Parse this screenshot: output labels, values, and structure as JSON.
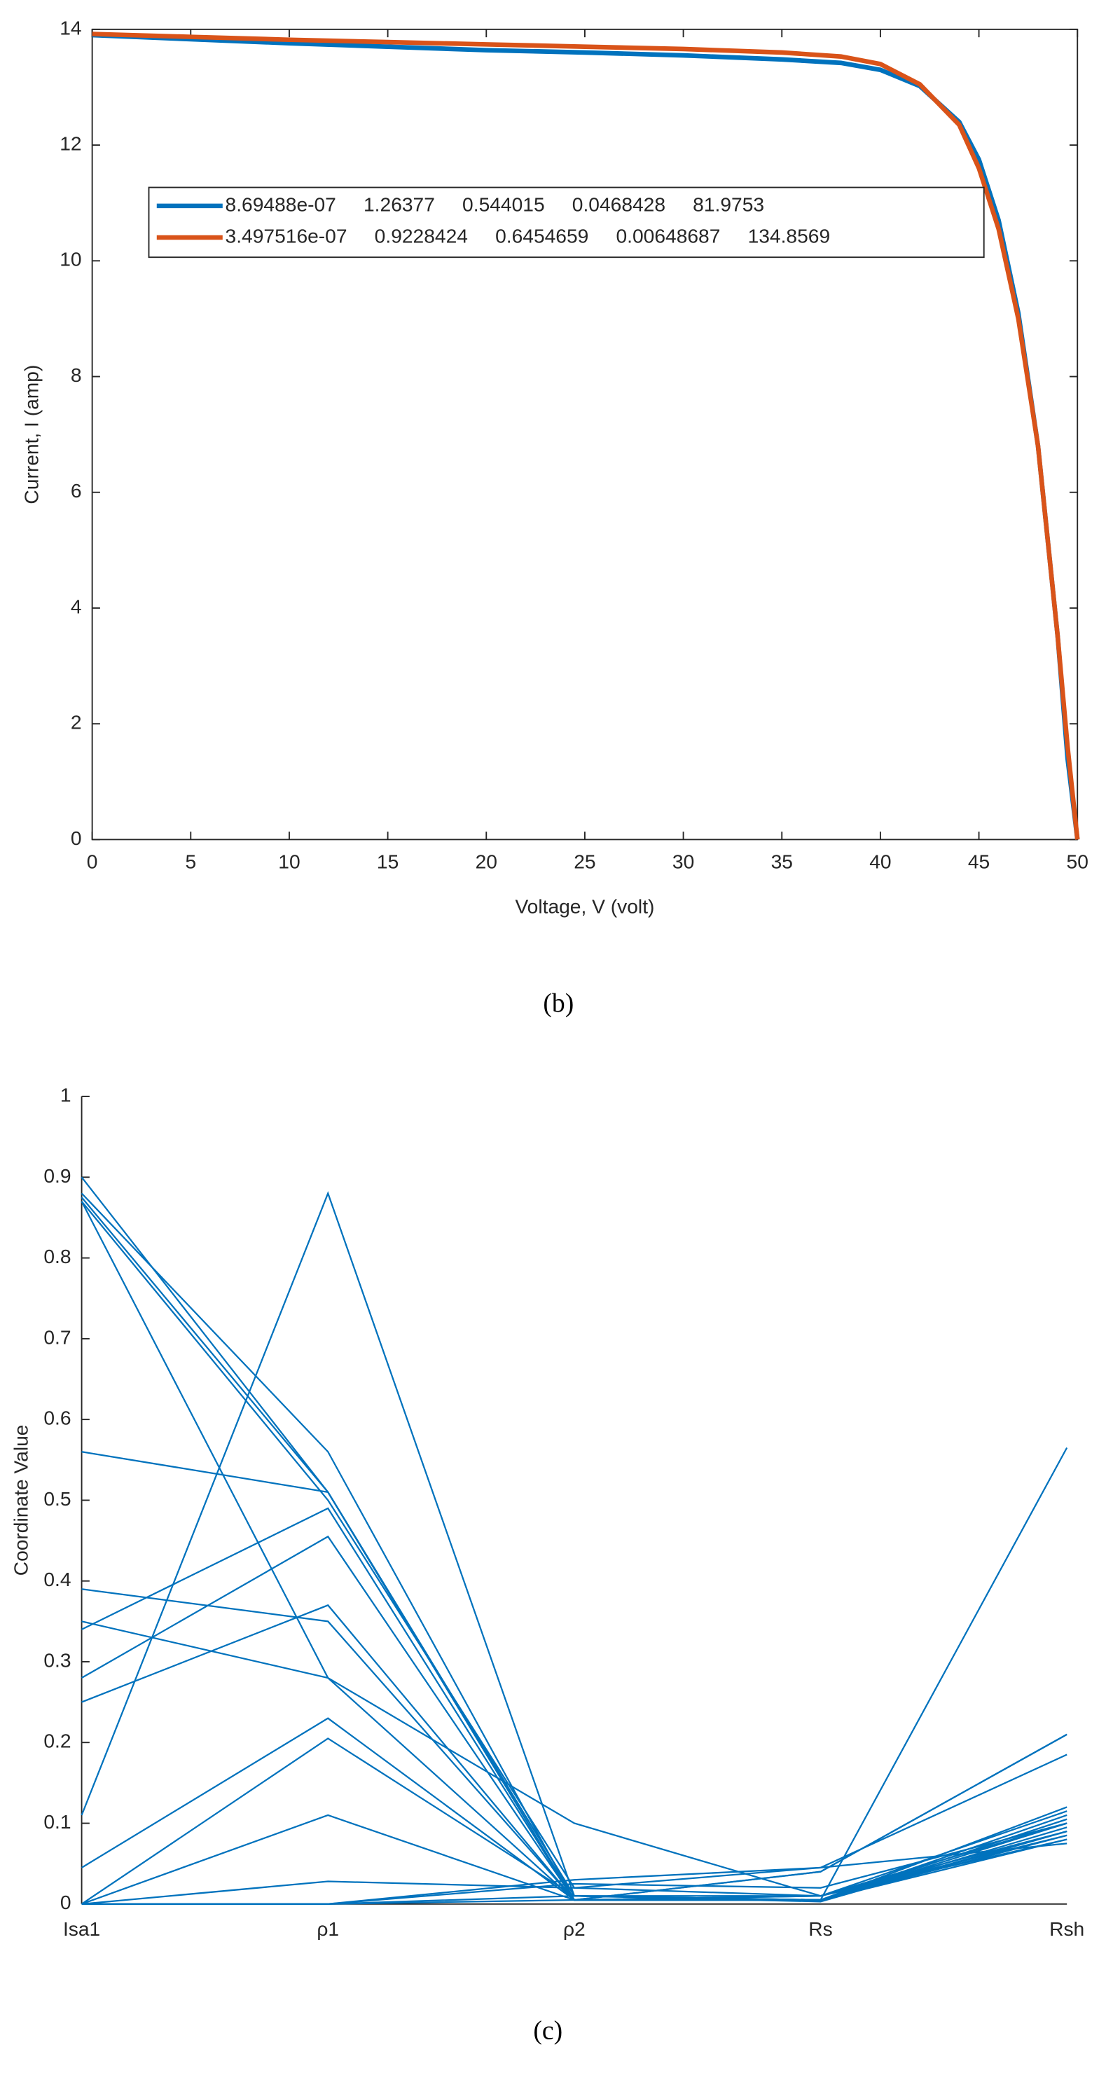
{
  "chart_data": [
    {
      "type": "line",
      "caption": "(b)",
      "xlabel": "Voltage, V (volt)",
      "ylabel": "Current, I (amp)",
      "x": [
        0,
        5,
        10,
        15,
        20,
        25,
        30,
        35,
        38,
        40,
        42,
        44,
        45,
        46,
        47,
        48,
        49,
        49.5,
        50
      ],
      "series": [
        {
          "name": "8.69488e-07     1.26377     0.544015     0.0468428     81.9753",
          "color": "#0072bd",
          "values": [
            13.9,
            13.83,
            13.76,
            13.7,
            13.64,
            13.6,
            13.55,
            13.48,
            13.42,
            13.3,
            13.02,
            12.4,
            11.75,
            10.7,
            9.1,
            6.8,
            3.5,
            1.4,
            0
          ]
        },
        {
          "name": "3.497516e-07     0.9228424     0.6454659     0.00648687     134.8569",
          "color": "#d95319",
          "values": [
            13.92,
            13.87,
            13.82,
            13.78,
            13.74,
            13.7,
            13.66,
            13.6,
            13.53,
            13.4,
            13.05,
            12.35,
            11.6,
            10.55,
            9.0,
            6.8,
            3.5,
            1.6,
            0
          ]
        }
      ],
      "xlim": [
        0,
        50
      ],
      "xticks": [
        0,
        5,
        10,
        15,
        20,
        25,
        30,
        35,
        40,
        45,
        50
      ],
      "ylim": [
        0,
        14
      ],
      "yticks": [
        0,
        2,
        4,
        6,
        8,
        10,
        12,
        14
      ],
      "legend": "upper-left"
    },
    {
      "type": "parallel",
      "caption": "(c)",
      "ylabel": "Coordinate Value",
      "color": "#0072bd",
      "categories": [
        "Isa1",
        "ρ1",
        "ρ2",
        "Rs",
        "Rsh"
      ],
      "series": [
        {
          "values": [
            0.9,
            0.51,
            0.01,
            0.01,
            0.09
          ]
        },
        {
          "values": [
            0.88,
            0.56,
            0.005,
            0.01,
            0.1
          ]
        },
        {
          "values": [
            0.875,
            0.51,
            0.01,
            0.005,
            0.08
          ]
        },
        {
          "values": [
            0.87,
            0.28,
            0.005,
            0.005,
            0.11
          ]
        },
        {
          "values": [
            0.87,
            0.5,
            0.02,
            0.01,
            0.08
          ]
        },
        {
          "values": [
            0.56,
            0.51,
            0.005,
            0.005,
            0.09
          ]
        },
        {
          "values": [
            0.39,
            0.35,
            0.005,
            0.04,
            0.21
          ]
        },
        {
          "values": [
            0.35,
            0.28,
            0.1,
            0.01,
            0.085
          ]
        },
        {
          "values": [
            0.34,
            0.49,
            0.005,
            0.005,
            0.1
          ]
        },
        {
          "values": [
            0.28,
            0.455,
            0.005,
            0.04,
            0.21
          ]
        },
        {
          "values": [
            0.25,
            0.37,
            0.005,
            0.005,
            0.12
          ]
        },
        {
          "values": [
            0.11,
            0.88,
            0.01,
            0.005,
            0.565
          ]
        },
        {
          "values": [
            0.045,
            0.23,
            0.005,
            0.005,
            0.105
          ]
        },
        {
          "values": [
            0,
            0.205,
            0.01,
            0.005,
            0.095
          ]
        },
        {
          "values": [
            0,
            0.11,
            0.005,
            0.005,
            0.085
          ]
        },
        {
          "values": [
            0,
            0.028,
            0.02,
            0.045,
            0.075
          ]
        },
        {
          "values": [
            0,
            0,
            0.03,
            0.045,
            0.185
          ]
        },
        {
          "values": [
            0,
            0,
            0.025,
            0.02,
            0.1
          ]
        },
        {
          "values": [
            0,
            0,
            0.01,
            0.003,
            0.09
          ]
        },
        {
          "values": [
            0,
            0,
            0.005,
            0.01,
            0.115
          ]
        }
      ],
      "ylim": [
        0,
        1
      ],
      "yticks": [
        0,
        0.1,
        0.2,
        0.3,
        0.4,
        0.5,
        0.6,
        0.7,
        0.8,
        0.9,
        1
      ]
    }
  ]
}
